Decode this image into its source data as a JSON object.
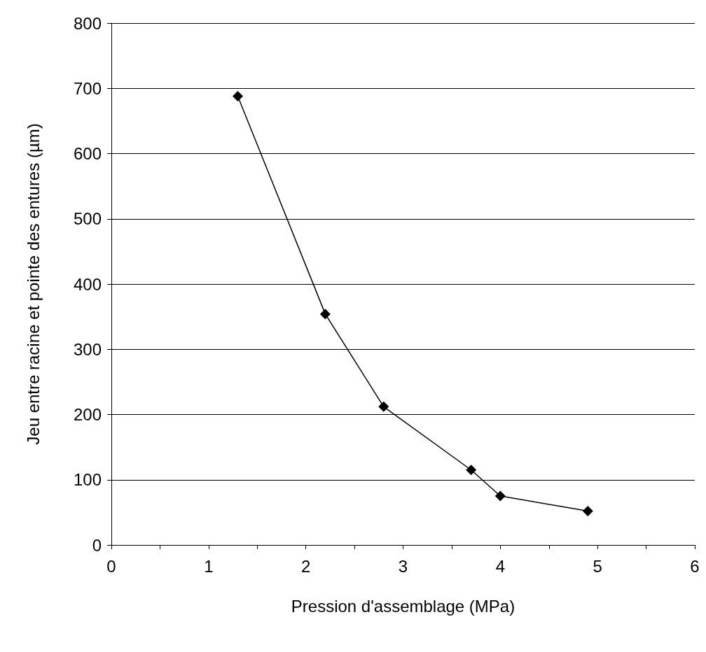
{
  "chart_data": {
    "type": "line",
    "xlabel": "Pression d'assemblage (MPa)",
    "ylabel": "Jeu entre racine et pointe des entures (µm)",
    "series": [
      {
        "color": "#000000",
        "x": [
          1.3,
          2.2,
          2.8,
          3.7,
          4.0,
          4.9
        ],
        "values": [
          688,
          354,
          212,
          115,
          75,
          52
        ]
      }
    ],
    "xlim": [
      0,
      6
    ],
    "xticks": [
      0,
      1,
      2,
      3,
      4,
      5,
      6
    ],
    "ylim": [
      0,
      800
    ],
    "yticks": [
      0,
      100,
      200,
      300,
      400,
      500,
      600,
      700,
      800
    ],
    "grid": "y",
    "marker": "diamond",
    "line_style": "solid"
  }
}
